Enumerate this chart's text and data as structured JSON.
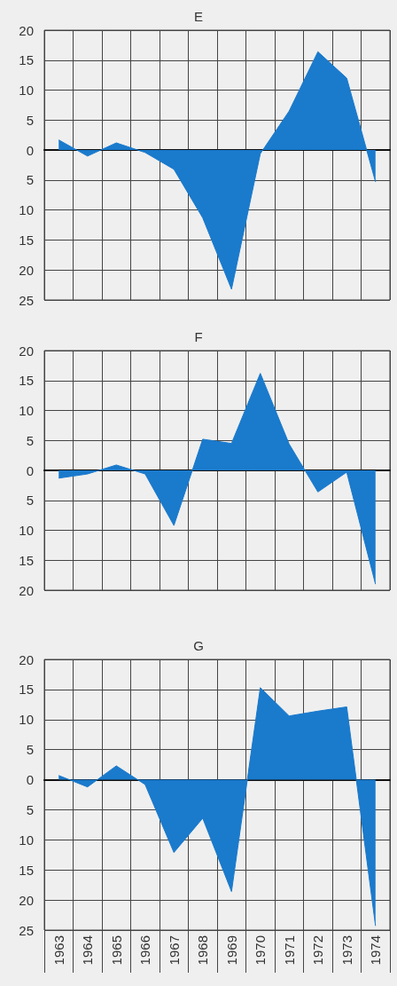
{
  "chart_data": [
    {
      "type": "area",
      "title": "E",
      "categories": [
        "1963",
        "1964",
        "1965",
        "1966",
        "1967",
        "1968",
        "1969",
        "1970",
        "1971",
        "1972",
        "1973",
        "1974"
      ],
      "tick_labels": "y",
      "grid": true,
      "marker": "none",
      "series": [
        {
          "color": "#1a7acc",
          "values": [
            1.7,
            -1.0,
            1.2,
            -0.4,
            -3.2,
            -11.3,
            -23.2,
            -0.6,
            6.5,
            16.4,
            12.0,
            -5.3
          ]
        }
      ],
      "ylim": [
        -25,
        20
      ],
      "yticks": [
        20,
        15,
        10,
        5,
        0,
        {
          "value": -5,
          "label": "5"
        },
        {
          "value": -10,
          "label": "10"
        },
        {
          "value": -15,
          "label": "15"
        },
        {
          "value": -20,
          "label": "20"
        },
        {
          "value": -25,
          "label": "25"
        }
      ]
    },
    {
      "type": "area",
      "title": "F",
      "categories": [
        "1963",
        "1964",
        "1965",
        "1966",
        "1967",
        "1968",
        "1969",
        "1970",
        "1971",
        "1972",
        "1973",
        "1974"
      ],
      "tick_labels": "y",
      "grid": true,
      "marker": "none",
      "series": [
        {
          "color": "#1a7acc",
          "values": [
            -1.3,
            -0.6,
            0.9,
            -0.6,
            -9.2,
            5.2,
            4.5,
            16.2,
            4.4,
            -3.6,
            -0.3,
            -19.0
          ]
        }
      ],
      "ylim": [
        -20,
        20
      ],
      "yticks": [
        20,
        15,
        10,
        5,
        0,
        {
          "value": -5,
          "label": "5"
        },
        {
          "value": -10,
          "label": "10"
        },
        {
          "value": -15,
          "label": "15"
        },
        {
          "value": -20,
          "label": "20"
        }
      ]
    },
    {
      "type": "area",
      "title": "G",
      "categories": [
        "1963",
        "1964",
        "1965",
        "1966",
        "1967",
        "1968",
        "1969",
        "1970",
        "1971",
        "1972",
        "1973",
        "1974"
      ],
      "grid": true,
      "marker": "none",
      "series": [
        {
          "color": "#1a7acc",
          "values": [
            0.7,
            -1.2,
            2.3,
            -0.8,
            -12.1,
            -6.4,
            -18.6,
            15.3,
            10.6,
            11.4,
            12.1,
            -24.3
          ]
        }
      ],
      "ylim": [
        -25,
        20
      ],
      "yticks": [
        20,
        15,
        10,
        5,
        0,
        {
          "value": -5,
          "label": "5"
        },
        {
          "value": -10,
          "label": "10"
        },
        {
          "value": -15,
          "label": "15"
        },
        {
          "value": -20,
          "label": "20"
        },
        {
          "value": -25,
          "label": "25"
        }
      ]
    }
  ]
}
